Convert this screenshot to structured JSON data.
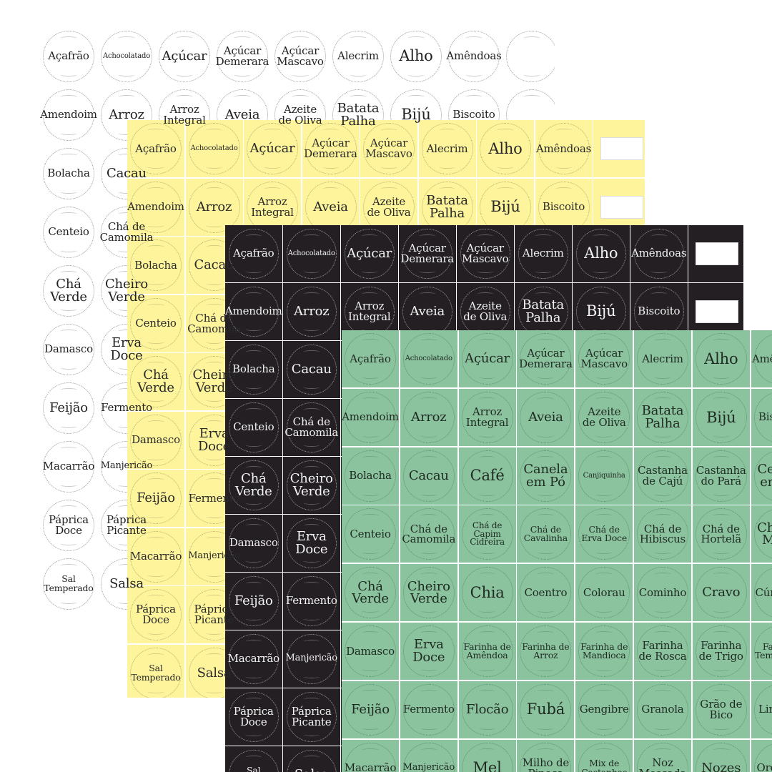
{
  "sheets": [
    {
      "id": "white",
      "name": "label-sheet-white",
      "background": "#ffffff",
      "columns": 9,
      "labels": [
        "Açafrão",
        "Achocolatado",
        "Açúcar",
        "Açúcar\nDemerara",
        "Açúcar\nMascavo",
        "Alecrim",
        "Alho",
        "Amêndoas",
        "",
        "Amendoim",
        "Arroz",
        "Arroz\nIntegral",
        "Aveia",
        "Azeite\nde Oliva",
        "Batata\nPalha",
        "Bijú",
        "Biscoito",
        "",
        "Bolacha",
        "Cacau",
        "",
        "",
        "",
        "",
        "",
        "",
        "",
        "Centeio",
        "Chá de\nCamomila",
        "",
        "",
        "",
        "",
        "",
        "",
        "",
        "Chá\nVerde",
        "Cheiro\nVerde",
        "",
        "",
        "",
        "",
        "",
        "",
        "",
        "Damasco",
        "Erva\nDoce",
        "",
        "",
        "",
        "",
        "",
        "",
        "",
        "Feijão",
        "Fermento",
        "",
        "",
        "",
        "",
        "",
        "",
        "",
        "Macarrão",
        "Manjericão",
        "",
        "",
        "",
        "",
        "",
        "",
        "",
        "Páprica\nDoce",
        "Páprica\nPicante",
        "",
        "",
        "",
        "",
        "",
        "",
        "",
        "Sal\nTemperado",
        "Salsa",
        "",
        "",
        "",
        "",
        "",
        "",
        ""
      ]
    },
    {
      "id": "yellow",
      "name": "label-sheet-yellow",
      "background": "#fdf49c",
      "columns": 9,
      "labels": [
        "Açafrão",
        "Achocolatado",
        "Açúcar",
        "Açúcar\nDemerara",
        "Açúcar\nMascavo",
        "Alecrim",
        "Alho",
        "Amêndoas",
        "",
        "Amendoim",
        "Arroz",
        "Arroz\nIntegral",
        "Aveia",
        "Azeite\nde Oliva",
        "Batata\nPalha",
        "Bijú",
        "Biscoito",
        "",
        "Bolacha",
        "Cacau",
        "",
        "",
        "",
        "",
        "",
        "",
        "",
        "Centeio",
        "Chá de\nCamomila",
        "",
        "",
        "",
        "",
        "",
        "",
        "",
        "Chá\nVerde",
        "Cheiro\nVerde",
        "",
        "",
        "",
        "",
        "",
        "",
        "",
        "Damasco",
        "Erva\nDoce",
        "",
        "",
        "",
        "",
        "",
        "",
        "",
        "Feijão",
        "Fermento",
        "",
        "",
        "",
        "",
        "",
        "",
        "",
        "Macarrão",
        "Manjericão",
        "",
        "",
        "",
        "",
        "",
        "",
        "",
        "Páprica\nDoce",
        "Páprica\nPicante",
        "",
        "",
        "",
        "",
        "",
        "",
        "",
        "Sal\nTemperado",
        "Salsa",
        "",
        "",
        "",
        "",
        "",
        "",
        ""
      ]
    },
    {
      "id": "black",
      "name": "label-sheet-black",
      "background": "#231f22",
      "columns": 9,
      "labels": [
        "Açafrão",
        "Achocolatado",
        "Açúcar",
        "Açúcar\nDemerara",
        "Açúcar\nMascavo",
        "Alecrim",
        "Alho",
        "Amêndoas",
        "",
        "Amendoim",
        "Arroz",
        "Arroz\nIntegral",
        "Aveia",
        "Azeite\nde Oliva",
        "Batata\nPalha",
        "Bijú",
        "Biscoito",
        "",
        "Bolacha",
        "Cacau",
        "",
        "",
        "",
        "",
        "",
        "",
        "",
        "Centeio",
        "Chá de\nCamomila",
        "",
        "",
        "",
        "",
        "",
        "",
        "",
        "Chá\nVerde",
        "Cheiro\nVerde",
        "",
        "",
        "",
        "",
        "",
        "",
        "",
        "Damasco",
        "Erva\nDoce",
        "",
        "",
        "",
        "",
        "",
        "",
        "",
        "Feijão",
        "Fermento",
        "",
        "",
        "",
        "",
        "",
        "",
        "",
        "Macarrão",
        "Manjericão",
        "",
        "",
        "",
        "",
        "",
        "",
        "",
        "Páprica\nDoce",
        "Páprica\nPicante",
        "",
        "",
        "",
        "",
        "",
        "",
        "",
        "Sal\nTemperado",
        "Salsa",
        "",
        "",
        "",
        "",
        "",
        "",
        ""
      ]
    },
    {
      "id": "green",
      "name": "label-sheet-green",
      "background": "#8cc39f",
      "columns": 8,
      "labels": [
        "Açafrão",
        "Achocolatado",
        "Açúcar",
        "Açúcar\nDemerara",
        "Açúcar\nMascavo",
        "Alecrim",
        "Alho",
        "Amêndoas",
        "Amendoim",
        "Arroz",
        "Arroz\nIntegral",
        "Aveia",
        "Azeite\nde Oliva",
        "Batata\nPalha",
        "Bijú",
        "Biscoito",
        "Bolacha",
        "Cacau",
        "Café",
        "Canela\nem Pó",
        "Canjiquinha",
        "Castanha\nde Cajú",
        "Castanha\ndo Pará",
        "Cebola\nem Pó",
        "Centeio",
        "Chá de\nCamomila",
        "Chá de\nCapim\nCidreira",
        "Chá de\nCavalinha",
        "Chá de\nErva Doce",
        "Chá de\nHibiscus",
        "Chá de\nHortelã",
        "Chá de\nMaçã",
        "Chá\nVerde",
        "Cheiro\nVerde",
        "Chia",
        "Coentro",
        "Colorau",
        "Cominho",
        "Cravo",
        "Cúrcuma",
        "Damasco",
        "Erva\nDoce",
        "Farinha de\nAmêndoa",
        "Farinha de\nArroz",
        "Farinha de\nMandioca",
        "Farinha\nde Rosca",
        "Farinha\nde Trigo",
        "Farinha\nTemperada",
        "Feijão",
        "Fermento",
        "Flocão",
        "Fubá",
        "Gengibre",
        "Granola",
        "Grão de\nBico",
        "Linhaça",
        "Macarrão",
        "Manjericão",
        "Mel",
        "Milho de\nPipoca",
        "Mix de\nCastanhas",
        "Noz\nMoscada",
        "Nozes",
        "Orégano"
      ]
    }
  ]
}
